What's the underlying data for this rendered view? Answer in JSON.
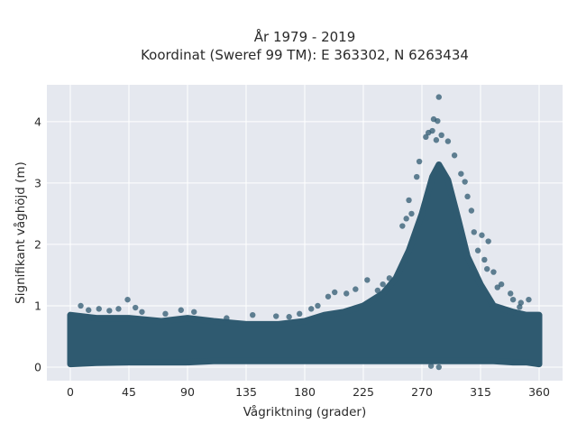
{
  "chart_data": {
    "type": "scatter",
    "title_lines": [
      "År 1979 - 2019",
      "Koordinat (Sweref 99 TM): E 363302, N 6263434"
    ],
    "xlabel": "Vågriktning (grader)",
    "ylabel": "Signifikant våghöjd (m)",
    "xlim": [
      -18,
      378
    ],
    "ylim": [
      -0.22,
      4.6
    ],
    "xticks": [
      0,
      45,
      90,
      135,
      180,
      225,
      270,
      315,
      360
    ],
    "yticks": [
      0,
      1,
      2,
      3,
      4
    ],
    "grid": true,
    "marker_color": "#2f5a70",
    "background_color": "#e5e8ef",
    "envelope": {
      "x": [
        0,
        20,
        45,
        70,
        90,
        110,
        135,
        160,
        180,
        195,
        210,
        225,
        240,
        250,
        260,
        270,
        278,
        283,
        290,
        298,
        305,
        315,
        325,
        340,
        350,
        360
      ],
      "y_low": [
        0.05,
        0.07,
        0.08,
        0.08,
        0.08,
        0.1,
        0.1,
        0.1,
        0.1,
        0.1,
        0.1,
        0.1,
        0.1,
        0.1,
        0.1,
        0.1,
        0.1,
        0.1,
        0.1,
        0.1,
        0.1,
        0.1,
        0.1,
        0.08,
        0.08,
        0.05
      ],
      "y_high": [
        0.85,
        0.8,
        0.8,
        0.75,
        0.8,
        0.75,
        0.7,
        0.7,
        0.75,
        0.85,
        0.9,
        1.0,
        1.2,
        1.45,
        1.9,
        2.5,
        3.1,
        3.3,
        3.05,
        2.4,
        1.8,
        1.35,
        1.0,
        0.9,
        0.85,
        0.85
      ]
    },
    "points": [
      {
        "x": 283,
        "y": 4.4
      },
      {
        "x": 279,
        "y": 4.04
      },
      {
        "x": 282,
        "y": 4.01
      },
      {
        "x": 275,
        "y": 3.82
      },
      {
        "x": 278,
        "y": 3.85
      },
      {
        "x": 285,
        "y": 3.78
      },
      {
        "x": 290,
        "y": 3.68
      },
      {
        "x": 273,
        "y": 3.75
      },
      {
        "x": 281,
        "y": 3.7
      },
      {
        "x": 295,
        "y": 3.45
      },
      {
        "x": 268,
        "y": 3.35
      },
      {
        "x": 300,
        "y": 3.15
      },
      {
        "x": 303,
        "y": 3.02
      },
      {
        "x": 266,
        "y": 3.1
      },
      {
        "x": 305,
        "y": 2.78
      },
      {
        "x": 260,
        "y": 2.72
      },
      {
        "x": 258,
        "y": 2.42
      },
      {
        "x": 262,
        "y": 2.5
      },
      {
        "x": 308,
        "y": 2.55
      },
      {
        "x": 310,
        "y": 2.2
      },
      {
        "x": 316,
        "y": 2.15
      },
      {
        "x": 321,
        "y": 2.05
      },
      {
        "x": 255,
        "y": 2.3
      },
      {
        "x": 318,
        "y": 1.75
      },
      {
        "x": 320,
        "y": 1.6
      },
      {
        "x": 325,
        "y": 1.55
      },
      {
        "x": 313,
        "y": 1.9
      },
      {
        "x": 245,
        "y": 1.45
      },
      {
        "x": 240,
        "y": 1.35
      },
      {
        "x": 236,
        "y": 1.25
      },
      {
        "x": 228,
        "y": 1.42
      },
      {
        "x": 219,
        "y": 1.27
      },
      {
        "x": 203,
        "y": 1.22
      },
      {
        "x": 198,
        "y": 1.15
      },
      {
        "x": 212,
        "y": 1.2
      },
      {
        "x": 328,
        "y": 1.3
      },
      {
        "x": 331,
        "y": 1.35
      },
      {
        "x": 338,
        "y": 1.2
      },
      {
        "x": 340,
        "y": 1.1
      },
      {
        "x": 346,
        "y": 1.05
      },
      {
        "x": 352,
        "y": 1.1
      },
      {
        "x": 345,
        "y": 0.98
      },
      {
        "x": 44,
        "y": 1.1
      },
      {
        "x": 50,
        "y": 0.97
      },
      {
        "x": 55,
        "y": 0.9
      },
      {
        "x": 37,
        "y": 0.95
      },
      {
        "x": 30,
        "y": 0.92
      },
      {
        "x": 8,
        "y": 1.0
      },
      {
        "x": 14,
        "y": 0.93
      },
      {
        "x": 22,
        "y": 0.95
      },
      {
        "x": 85,
        "y": 0.93
      },
      {
        "x": 95,
        "y": 0.9
      },
      {
        "x": 73,
        "y": 0.87
      },
      {
        "x": 140,
        "y": 0.85
      },
      {
        "x": 158,
        "y": 0.83
      },
      {
        "x": 176,
        "y": 0.87
      },
      {
        "x": 185,
        "y": 0.95
      },
      {
        "x": 190,
        "y": 1.0
      },
      {
        "x": 168,
        "y": 0.82
      },
      {
        "x": 120,
        "y": 0.8
      },
      {
        "x": 283,
        "y": 0.0
      },
      {
        "x": 277,
        "y": 0.02
      }
    ]
  }
}
